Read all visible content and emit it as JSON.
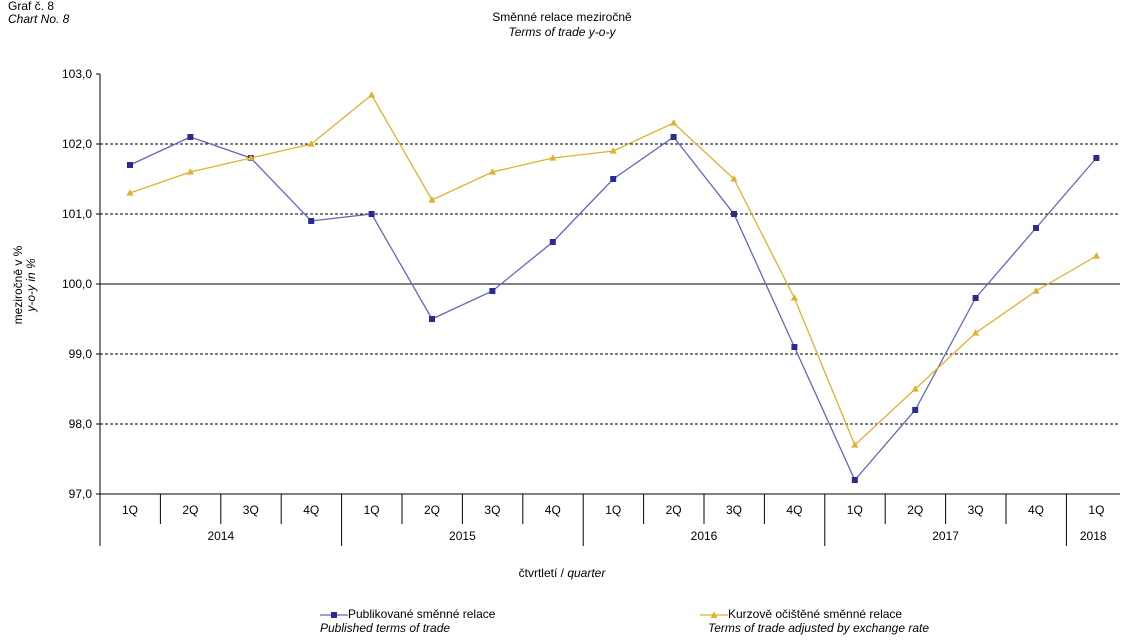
{
  "header": {
    "chart_no_cz": "Graf č. 8",
    "chart_no_en": "Chart No. 8"
  },
  "chart_data": {
    "type": "line",
    "title": "Směnné relace meziročně",
    "subtitle": "Terms of trade y-o-y",
    "ylabel": "meziročně v %",
    "ylabel_en": "y-o-y in %",
    "xlabel": "čtvrtletí",
    "xlabel_en": "quarter",
    "ylim": [
      97.0,
      103.0
    ],
    "y_ticks": [
      "103,0",
      "102,0",
      "101,0",
      "100,0",
      "99,0",
      "98,0",
      "97,0"
    ],
    "y_tick_values": [
      103,
      102,
      101,
      100,
      99,
      98,
      97
    ],
    "grid": "dashed-horizontal",
    "categories": [
      "1Q",
      "2Q",
      "3Q",
      "4Q",
      "1Q",
      "2Q",
      "3Q",
      "4Q",
      "1Q",
      "2Q",
      "3Q",
      "4Q",
      "1Q",
      "2Q",
      "3Q",
      "4Q",
      "1Q"
    ],
    "years": [
      {
        "label": "2014",
        "quarters": 4
      },
      {
        "label": "2015",
        "quarters": 4
      },
      {
        "label": "2016",
        "quarters": 4
      },
      {
        "label": "2017",
        "quarters": 4
      },
      {
        "label": "2018",
        "quarters": 1
      }
    ],
    "series": [
      {
        "name": "Publikované směnné relace",
        "name_en": "Published terms of trade",
        "color": "#6666bb",
        "marker_color": "#2a2a90",
        "marker": "square",
        "values": [
          101.7,
          102.1,
          101.8,
          100.9,
          101.0,
          99.5,
          99.9,
          100.6,
          101.5,
          102.1,
          101.0,
          99.1,
          97.2,
          98.2,
          99.8,
          100.8,
          101.8
        ]
      },
      {
        "name": "Kurzově očištěné směnné relace",
        "name_en": "Terms of trade adjusted by exchange rate",
        "color": "#e0b030",
        "marker_color": "#e0b030",
        "marker": "triangle",
        "values": [
          101.3,
          101.6,
          101.8,
          102.0,
          102.7,
          101.2,
          101.6,
          101.8,
          101.9,
          102.3,
          101.5,
          99.8,
          97.7,
          98.5,
          99.3,
          99.9,
          100.4
        ]
      }
    ],
    "legend_position": "bottom"
  }
}
